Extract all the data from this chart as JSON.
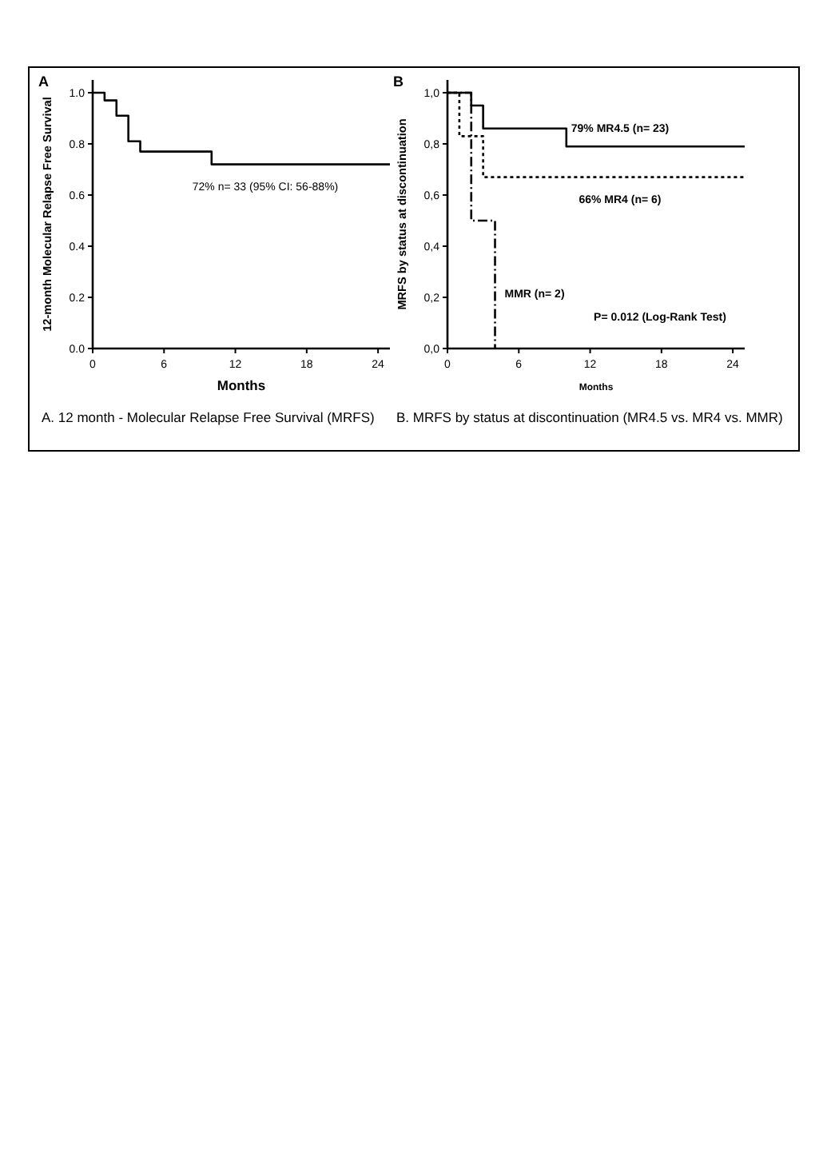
{
  "chart_data": [
    {
      "type": "step",
      "xlabel": "Months",
      "ylabel": "12-month Molecular Relapse Free Survival",
      "xlim": [
        0,
        25
      ],
      "ylim": [
        0,
        1.05
      ],
      "xticks": [
        0,
        6,
        12,
        18,
        24
      ],
      "yticks": [
        {
          "value": 0,
          "label": "0.0"
        },
        {
          "value": 0.2,
          "label": "0.2"
        },
        {
          "value": 0.4,
          "label": "0.4"
        },
        {
          "value": 0.6,
          "label": "0.6"
        },
        {
          "value": 0.8,
          "label": "0.8"
        },
        {
          "value": 1,
          "label": "1.0"
        }
      ],
      "series": [
        {
          "name": "72% n= 33  (95% CI: 56-88%)",
          "color": "#000000",
          "line_style": "solid",
          "x": [
            0,
            1,
            2,
            3,
            4,
            10,
            25
          ],
          "values": [
            1,
            0.97,
            0.91,
            0.81,
            0.77,
            0.72,
            0.72
          ]
        }
      ],
      "annotations": [
        "A",
        "A.   12 month - Molecular Relapse Free Survival (MRFS)"
      ]
    },
    {
      "type": "step",
      "xlabel": "Months",
      "ylabel": "MRFS by status at discontinuation",
      "xlim": [
        0,
        25
      ],
      "ylim": [
        0,
        1.05
      ],
      "xticks": [
        0,
        6,
        12,
        18,
        24
      ],
      "yticks": [
        {
          "value": 0,
          "label": "0,0"
        },
        {
          "value": 0.2,
          "label": "0,2"
        },
        {
          "value": 0.4,
          "label": "0,4"
        },
        {
          "value": 0.6,
          "label": "0,6"
        },
        {
          "value": 0.8,
          "label": "0,8"
        },
        {
          "value": 1,
          "label": "1,0"
        }
      ],
      "series": [
        {
          "name": "79% MR4.5 (n= 23)",
          "color": "#000000",
          "line_style": "solid",
          "x": [
            0,
            2,
            3,
            10,
            25
          ],
          "values": [
            1,
            0.95,
            0.86,
            0.79,
            0.79
          ]
        },
        {
          "name": "66% MR4 (n= 6)",
          "color": "#000000",
          "line_style": "dotted",
          "x": [
            0,
            1,
            3,
            25
          ],
          "values": [
            1,
            0.83,
            0.67,
            0.67
          ]
        },
        {
          "name": "MMR (n= 2)",
          "color": "#000000",
          "line_style": "dashed",
          "x": [
            0,
            2,
            4
          ],
          "values": [
            1,
            0.5,
            0
          ]
        }
      ],
      "annotations": [
        "B",
        "P= 0.012 (Log-Rank Test)",
        "B. MRFS by status at discontinuation (MR4.5 vs. MR4 vs. MMR)"
      ]
    }
  ]
}
